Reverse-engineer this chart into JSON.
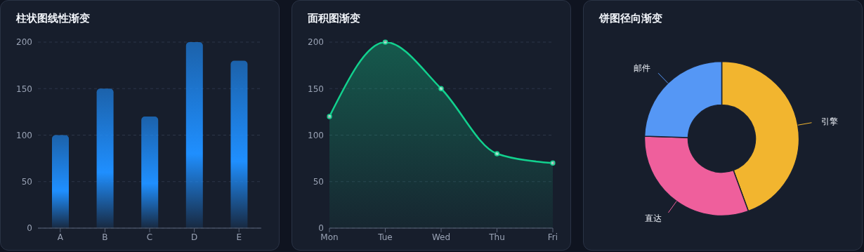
{
  "chart_data": [
    {
      "type": "bar",
      "title": "柱状图线性渐变",
      "categories": [
        "A",
        "B",
        "C",
        "D",
        "E"
      ],
      "values": [
        100,
        150,
        120,
        200,
        180
      ],
      "color": "#1f8fff",
      "ylim": [
        0,
        200
      ],
      "yticks": [
        0,
        50,
        100,
        150,
        200
      ],
      "grid": "y"
    },
    {
      "type": "area",
      "title": "面积图渐变",
      "categories": [
        "Mon",
        "Tue",
        "Wed",
        "Thu",
        "Fri"
      ],
      "values": [
        120,
        200,
        150,
        80,
        70
      ],
      "color": "#12d18e",
      "ylim": [
        0,
        200
      ],
      "yticks": [
        0,
        50,
        100,
        150,
        200
      ],
      "grid": "y",
      "marker": "circle",
      "line_style": "solid"
    },
    {
      "type": "donut",
      "title": "饼图径向渐变",
      "categories": [
        "引擎",
        "直达",
        "邮件"
      ],
      "values": [
        44.4,
        31.1,
        24.5
      ],
      "colors": [
        "#f2b52f",
        "#ef5f9c",
        "#5597f5"
      ]
    }
  ]
}
